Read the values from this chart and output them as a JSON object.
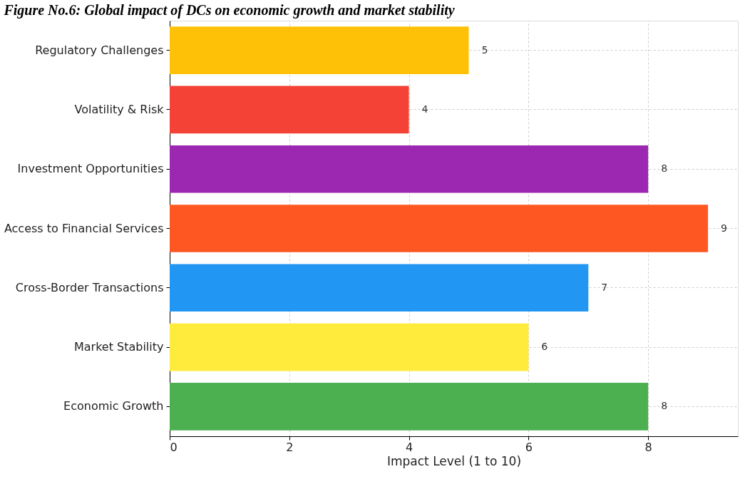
{
  "chart_data": {
    "type": "bar",
    "orientation": "horizontal",
    "title": "Figure No.6: Global impact of DCs on economic growth and market stability",
    "xlabel": "Impact Level (1 to 10)",
    "categories": [
      "Regulatory Challenges",
      "Volatility & Risk",
      "Investment Opportunities",
      "Access to Financial Services",
      "Cross-Border Transactions",
      "Market Stability",
      "Economic Growth"
    ],
    "values": [
      5,
      4,
      8,
      9,
      7,
      6,
      8
    ],
    "colors": [
      "#ffc107",
      "#f44336",
      "#9c27b0",
      "#ff5722",
      "#2196f3",
      "#ffeb3b",
      "#4caf50"
    ],
    "xlim": [
      0,
      9.5
    ],
    "xticks": [
      0,
      2,
      4,
      6,
      8
    ],
    "grid": true,
    "data_labels": true
  }
}
